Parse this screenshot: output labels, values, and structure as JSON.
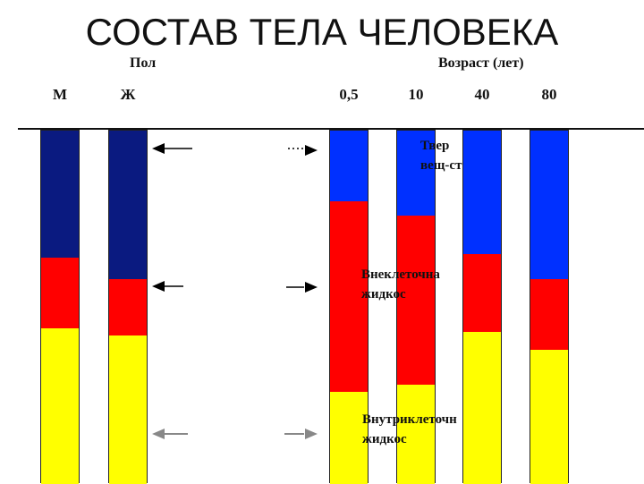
{
  "title": "СОСТАВ ТЕЛА ЧЕЛОВЕКА",
  "groups": {
    "sex": "Пол",
    "age": "Возраст (лет)"
  },
  "colors": {
    "top": "#0030ff",
    "top_dark": "#0a1a80",
    "middle": "#ff0000",
    "bottom": "#ffff00"
  },
  "category_labels": [
    {
      "line1": "Твер",
      "line2": "вещ-ст"
    },
    {
      "line1": "Внеклеточна",
      "line2": "жидкос"
    },
    {
      "line1": "Внутриклеточн",
      "line2": "жидкос"
    }
  ],
  "chart_data": {
    "type": "bar",
    "stacked": true,
    "categories": [
      "М",
      "Ж",
      "0,5",
      "10",
      "40",
      "80"
    ],
    "series": [
      {
        "values": [
          36,
          42,
          20,
          24,
          35,
          42
        ]
      },
      {
        "values": [
          20,
          16,
          54,
          48,
          22,
          20
        ]
      },
      {
        "values": [
          44,
          42,
          26,
          28,
          43,
          38
        ]
      }
    ],
    "ylim": [
      0,
      100
    ]
  }
}
